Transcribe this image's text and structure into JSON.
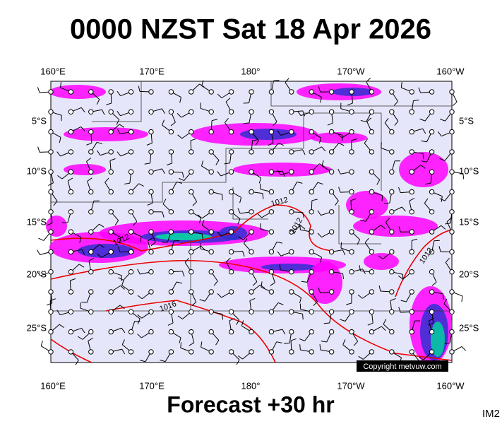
{
  "header": {
    "title": "0000 NZST Sat 18 Apr 2026"
  },
  "longitude_labels": [
    "160°E",
    "170°E",
    "180°",
    "170°W",
    "160°W"
  ],
  "latitude_labels": [
    "5°S",
    "10°S",
    "15°S",
    "20°S",
    "25°S"
  ],
  "isobar_labels": [
    "1012",
    "1012",
    "1012",
    "1016",
    "1012"
  ],
  "copyright": "Copyright metvuw.com",
  "footer": {
    "caption": "Forecast +30 hr",
    "code": "IM2"
  }
}
